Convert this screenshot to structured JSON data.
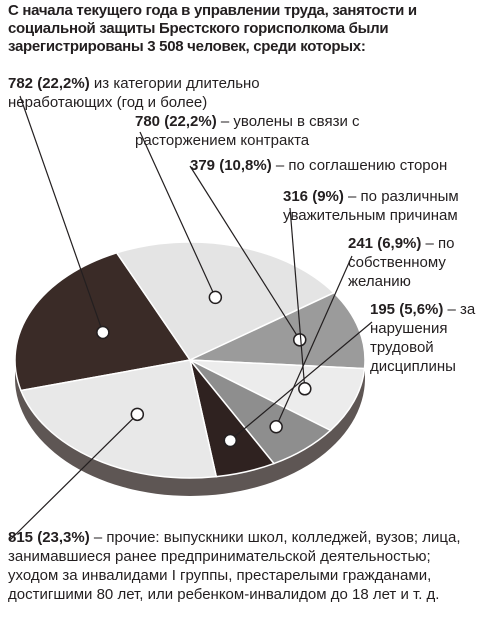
{
  "chart_data": {
    "type": "pie",
    "title": "С начала текущего года в управлении труда, занятости и социальной защиты Брестского горисполкома были зарегистрированы 3 508 человек, среди которых:",
    "categories": [
      "из категории длительно неработающих (год и более)",
      "– уволены в связи с расторжением контракта",
      "– по соглашению сторон",
      "– по различным уважительным причинам",
      "– по собственному желанию",
      "– за нарушения трудовой дисциплины",
      "– прочие: выпускники школ, колледжей, вузов; лица, занимавшиеся ранее предпринимательской деятельностью; уходом за инвалидами I группы, престарелыми гражданами, достигшими 80 лет, или ребенком-инвалидом до 18 лет и т. д."
    ],
    "values": [
      782,
      780,
      379,
      316,
      241,
      195,
      815
    ],
    "value_labels": [
      "782 (22,2%)",
      "780 (22,2%)",
      "379 (10,8%)",
      "316 (9%)",
      "241 (6,9%)",
      "195 (5,6%)",
      "815 (23,3%)"
    ],
    "colors": [
      "#3a2b27",
      "#e4e4e4",
      "#9b9b9b",
      "#ececec",
      "#8e8e8e",
      "#2f2220",
      "#e8e8e8"
    ]
  }
}
